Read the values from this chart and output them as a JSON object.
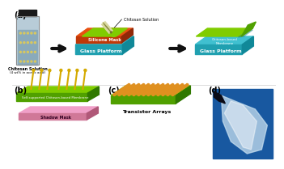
{
  "panel_a_label": "(a)",
  "panel_b_label": "(b)",
  "panel_c_label": "(c)",
  "panel_d_label": "(d)",
  "bottle_text1": "Chitosan Solution",
  "bottle_text2": "(4 wt% in acetic acid)",
  "glass_label1": "Glass Platform",
  "glass_label2": "Glass Platform",
  "silicone_label": "Silicone Mask",
  "chitosan_sol_label": "Chitosan Solution",
  "membrane_label": "Chitosan-based\nMembrane",
  "shadow_mask_label": "Shadow Mask",
  "self_supported_label": "Self-supported Chitosan-based Membrane",
  "transistor_label": "Transistor Arrays",
  "color_teal": "#40c0d0",
  "color_teal_side": "#20a0b0",
  "color_teal_dark": "#108898",
  "color_orange": "#e85010",
  "color_orange_side": "#c03808",
  "color_orange_dark": "#902808",
  "color_green": "#80cc00",
  "color_green_side": "#50a000",
  "color_green_dark": "#307800",
  "color_pink": "#f0a0c8",
  "color_pink_side": "#d07898",
  "color_pink_dark": "#b05878",
  "color_gold": "#d4aa00",
  "color_arrow": "#111111",
  "color_bg": "#ffffff",
  "color_blue_photo": "#1858a0"
}
